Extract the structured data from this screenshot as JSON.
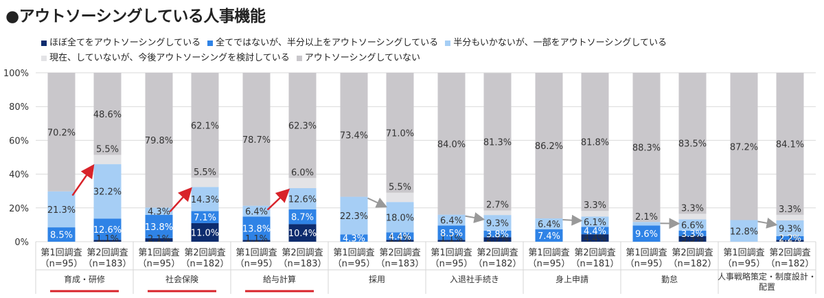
{
  "title": "●アウトソーシングしている人事機能",
  "legend": [
    {
      "label": "ほぼ全てをアウトソーシングしている",
      "color": "#0d2c6e"
    },
    {
      "label": "全てではないが、半分以上をアウトソーシングしている",
      "color": "#2f83e6"
    },
    {
      "label": "半分もいかないが、一部をアウトソーシングしている",
      "color": "#a6cef5"
    },
    {
      "label": "現在、していないが、今後アウトソーシングを検討している",
      "color": "#e3e3e6"
    },
    {
      "label": "アウトソーシングしていない",
      "color": "#c9c7cb"
    }
  ],
  "chart_data": {
    "type": "bar",
    "stacked": true,
    "ylim": [
      0,
      100
    ],
    "yticks": [
      "0%",
      "20%",
      "40%",
      "60%",
      "80%",
      "100%"
    ],
    "grid": true,
    "legend_position": "top",
    "categories": [
      {
        "group": "育成・研修",
        "highlight": true,
        "bars": [
          {
            "label": "第1回調査",
            "n": "（n=95）",
            "values": [
              0,
              8.5,
              21.3,
              0,
              70.2
            ],
            "labels": [
              "",
              "8.5%",
              "21.3%",
              "",
              "70.2%"
            ]
          },
          {
            "label": "第2回調査",
            "n": "（n=183）",
            "values": [
              1.1,
              12.6,
              32.2,
              5.5,
              48.6
            ],
            "labels": [
              "1.1%",
              "12.6%",
              "32.2%",
              "5.5%",
              "48.6%"
            ]
          }
        ]
      },
      {
        "group": "社会保険",
        "highlight": true,
        "bars": [
          {
            "label": "第1回調査",
            "n": "（n=95）",
            "values": [
              2.1,
              13.8,
              4.3,
              0,
              79.8
            ],
            "labels": [
              "2.1%",
              "13.8%",
              "4.3%",
              "",
              "79.8%"
            ]
          },
          {
            "label": "第2回調査",
            "n": "（n=182）",
            "values": [
              11.0,
              7.1,
              14.3,
              5.5,
              62.1
            ],
            "labels": [
              "11.0%",
              "7.1%",
              "14.3%",
              "5.5%",
              "62.1%"
            ]
          }
        ]
      },
      {
        "group": "給与計算",
        "highlight": true,
        "bars": [
          {
            "label": "第1回調査",
            "n": "（n=95）",
            "values": [
              1.1,
              13.8,
              6.4,
              0,
              78.7
            ],
            "labels": [
              "1.1%",
              "13.8%",
              "6.4%",
              "",
              "78.7%"
            ]
          },
          {
            "label": "第2回調査",
            "n": "（n=183）",
            "values": [
              10.4,
              8.7,
              12.6,
              6.0,
              62.3
            ],
            "labels": [
              "10.4%",
              "8.7%",
              "12.6%",
              "6.0%",
              "62.3%"
            ]
          }
        ]
      },
      {
        "group": "採用",
        "highlight": false,
        "bars": [
          {
            "label": "第1回調査",
            "n": "（n=95）",
            "values": [
              0,
              4.3,
              22.3,
              0,
              73.4
            ],
            "labels": [
              "",
              "4.3%",
              "22.3%",
              "",
              "73.4%"
            ]
          },
          {
            "label": "第2回調査",
            "n": "（n=183）",
            "values": [
              1.1,
              4.4,
              18.0,
              5.5,
              71.0
            ],
            "labels": [
              "1.1%",
              "4.4%",
              "18.0%",
              "5.5%",
              "71.0%"
            ]
          }
        ]
      },
      {
        "group": "入退社手続き",
        "highlight": false,
        "bars": [
          {
            "label": "第1回調査",
            "n": "（n=95）",
            "values": [
              1.1,
              8.5,
              6.4,
              0,
              84.0
            ],
            "labels": [
              "1.1%",
              "8.5%",
              "6.4%",
              "",
              "84.0%"
            ]
          },
          {
            "label": "第2回調査",
            "n": "（n=182）",
            "values": [
              2.7,
              3.8,
              9.3,
              2.7,
              81.3
            ],
            "labels": [
              "2.7%",
              "3.8%",
              "9.3%",
              "2.7%",
              "81.3%"
            ]
          }
        ]
      },
      {
        "group": "身上申請",
        "highlight": false,
        "bars": [
          {
            "label": "第1回調査",
            "n": "（n=95）",
            "values": [
              0,
              7.4,
              6.4,
              0,
              86.2
            ],
            "labels": [
              "",
              "7.4%",
              "6.4%",
              "",
              "86.2%"
            ]
          },
          {
            "label": "第2回調査",
            "n": "（n=181）",
            "values": [
              4.4,
              4.4,
              6.1,
              3.3,
              81.8
            ],
            "labels": [
              "4.4%",
              "4.4%",
              "6.1%",
              "3.3%",
              "81.8%"
            ]
          }
        ]
      },
      {
        "group": "勤怠",
        "highlight": false,
        "bars": [
          {
            "label": "第1回調査",
            "n": "（n=95）",
            "values": [
              0,
              9.6,
              2.1,
              0,
              88.3
            ],
            "labels": [
              "",
              "9.6%",
              "2.1%",
              "",
              "88.3%"
            ]
          },
          {
            "label": "第2回調査",
            "n": "（n=182）",
            "values": [
              3.3,
              3.3,
              6.6,
              3.3,
              83.5
            ],
            "labels": [
              "3.3%",
              "3.3%",
              "6.6%",
              "3.3%",
              "83.5%"
            ]
          }
        ]
      },
      {
        "group": "人事戦略策定・制度設計・配置",
        "highlight": false,
        "bars": [
          {
            "label": "第1回調査",
            "n": "（n=95）",
            "values": [
              0,
              0,
              12.8,
              0,
              87.2
            ],
            "labels": [
              "",
              "",
              "12.8%",
              "",
              "87.2%"
            ]
          },
          {
            "label": "第2回調査",
            "n": "（n=182）",
            "values": [
              1.1,
              2.2,
              9.3,
              3.3,
              84.1
            ],
            "labels": [
              "1.1%",
              "2.2%",
              "9.3%",
              "3.3%",
              "84.1%"
            ]
          }
        ]
      }
    ]
  }
}
